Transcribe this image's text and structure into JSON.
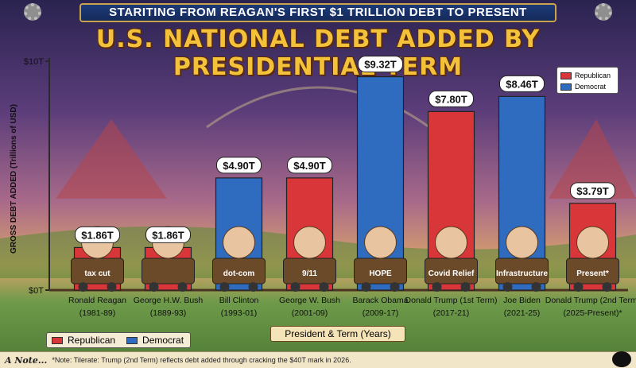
{
  "header": {
    "banner_text": "STARITING FROM REAGAN'S FIRST $1 TRILLION DEBT TO PRESENT",
    "title": "U.S. NATIONAL DEBT ADDED BY PRESIDENTIAL TERM"
  },
  "colors": {
    "republican": "#d9363a",
    "democrat": "#2f6bbf",
    "value_label_bg": "#ffffff",
    "axis": "#2a2a2a"
  },
  "legend": {
    "republican": "Republican",
    "democrat": "Democrat"
  },
  "chart_data": {
    "type": "bar",
    "title": "U.S. NATIONAL DEBT ADDED BY PRESIDENTIAL TERM",
    "ylabel": "GROSS DEBT ADDED (Trillions of USD)",
    "xlabel": "President & Term (Years)",
    "ylim": [
      0,
      10
    ],
    "yticks": [
      {
        "value": 0,
        "label": "$0T"
      },
      {
        "value": 10,
        "label": "$10T"
      }
    ],
    "categories": [
      {
        "name": "Ronald Reagan",
        "term": "(1981-89)"
      },
      {
        "name": "George H.W. Bush",
        "term": "(1889-93)"
      },
      {
        "name": "Bill Clinton",
        "term": "(1993-01)"
      },
      {
        "name": "George W. Bush",
        "term": "(2001-09)"
      },
      {
        "name": "Barack Obama",
        "term": "(2009-17)"
      },
      {
        "name": "Donald Trump (1st Term)",
        "term": "(2017-21)"
      },
      {
        "name": "Joe Biden",
        "term": "(2021-25)"
      },
      {
        "name": "Donald Trump (2nd Term)",
        "term": "(2025-Present)*"
      }
    ],
    "values": [
      1.86,
      1.86,
      4.9,
      4.9,
      9.32,
      7.8,
      8.46,
      3.79
    ],
    "value_labels": [
      "$1.86T",
      "$1.86T",
      "$4.90T",
      "$4.90T",
      "$9.32T",
      "$7.80T",
      "$8.46T",
      "$3.79T"
    ],
    "party": [
      "Republican",
      "Republican",
      "Democrat",
      "Republican",
      "Democrat",
      "Republican",
      "Democrat",
      "Republican"
    ],
    "annotations": [
      "tax cut",
      "",
      "dot-com",
      "9/11",
      "HOPE",
      "Covid Relief",
      "Infrastructure",
      "Present*"
    ],
    "legend_position": "top-right"
  },
  "footer": {
    "note_tag": "A Note...",
    "note_text": "*Note: Tilerate: Trump (2nd Term) reflects debt added through cracking the $40T mark in 2026."
  }
}
